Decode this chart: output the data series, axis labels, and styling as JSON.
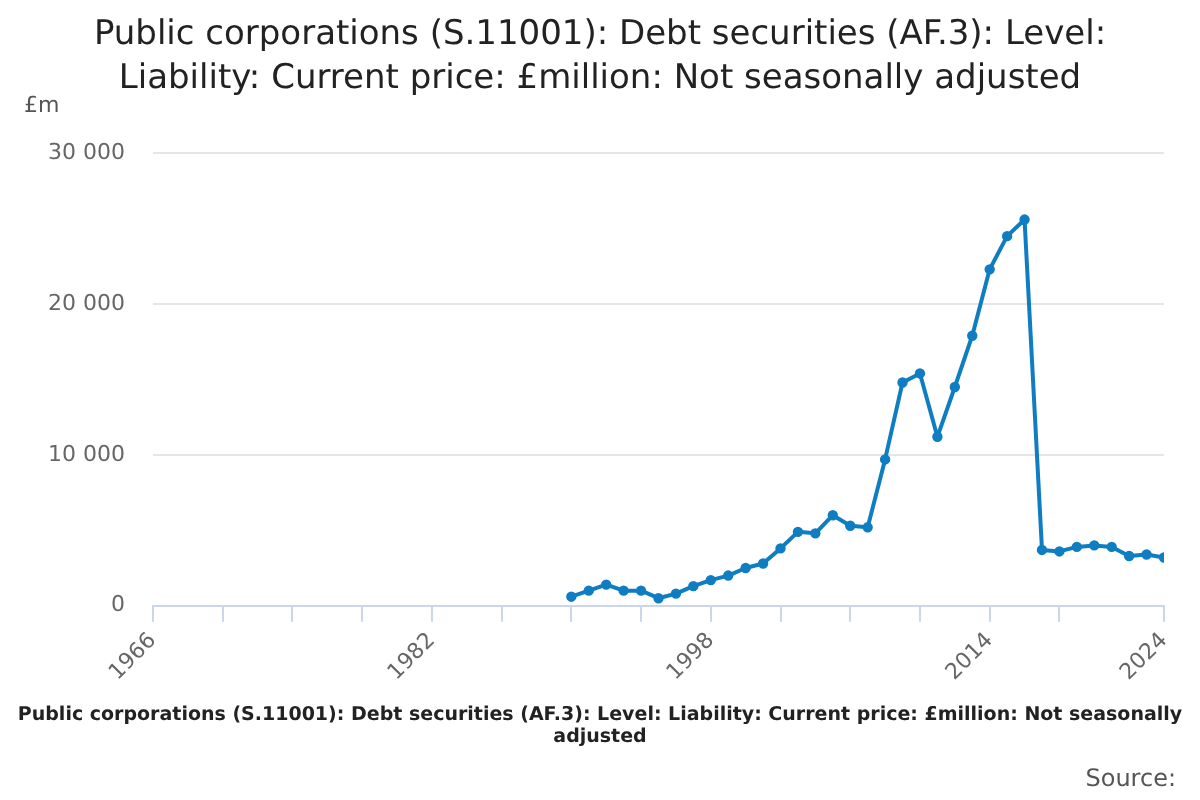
{
  "chart_data": {
    "type": "line",
    "title": "Public corporations (S.11001): Debt securities (AF.3): Level: Liability: Current price: £million: Not seasonally adjusted",
    "ylabel": "£m",
    "annotations": [
      "Public corporations (S.11001): Debt securities (AF.3): Level: Liability: Current price: £million: Not seasonally adjusted",
      "Source:"
    ],
    "x": [
      1990,
      1991,
      1992,
      1993,
      1994,
      1995,
      1996,
      1997,
      1998,
      1999,
      2000,
      2001,
      2002,
      2003,
      2004,
      2005,
      2006,
      2007,
      2008,
      2009,
      2010,
      2011,
      2012,
      2013,
      2014,
      2015,
      2016,
      2017,
      2018,
      2019,
      2020,
      2021,
      2022,
      2023,
      2024
    ],
    "series": [
      {
        "color": "#0f7dc2",
        "values": [
          600,
          1000,
          1400,
          1000,
          1000,
          500,
          800,
          1300,
          1700,
          2000,
          2500,
          2800,
          3800,
          4900,
          4800,
          6000,
          5300,
          5200,
          9700,
          14800,
          15400,
          11200,
          14500,
          17900,
          22300,
          24500,
          25600,
          3700,
          3600,
          3900,
          4000,
          3900,
          3300,
          3400,
          3200
        ]
      }
    ],
    "xlim": [
      1966,
      2024
    ],
    "xticks": [
      1966,
      {
        "value": 1970,
        "label": null
      },
      {
        "value": 1974,
        "label": null
      },
      {
        "value": 1978,
        "label": null
      },
      1982,
      {
        "value": 1986,
        "label": null
      },
      {
        "value": 1990,
        "label": null
      },
      {
        "value": 1994,
        "label": null
      },
      1998,
      {
        "value": 2002,
        "label": null
      },
      {
        "value": 2006,
        "label": null
      },
      {
        "value": 2010,
        "label": null
      },
      2014,
      {
        "value": 2018,
        "label": null
      },
      2024
    ],
    "ylim": [
      0,
      30000
    ],
    "yticks": [
      {
        "value": 0,
        "label": "0"
      },
      {
        "value": 10000,
        "label": "10 000"
      },
      {
        "value": 20000,
        "label": "20 000"
      },
      {
        "value": 30000,
        "label": "30 000"
      }
    ],
    "grid": "y",
    "legend": false,
    "marker": "circle",
    "line_style": "solid"
  }
}
